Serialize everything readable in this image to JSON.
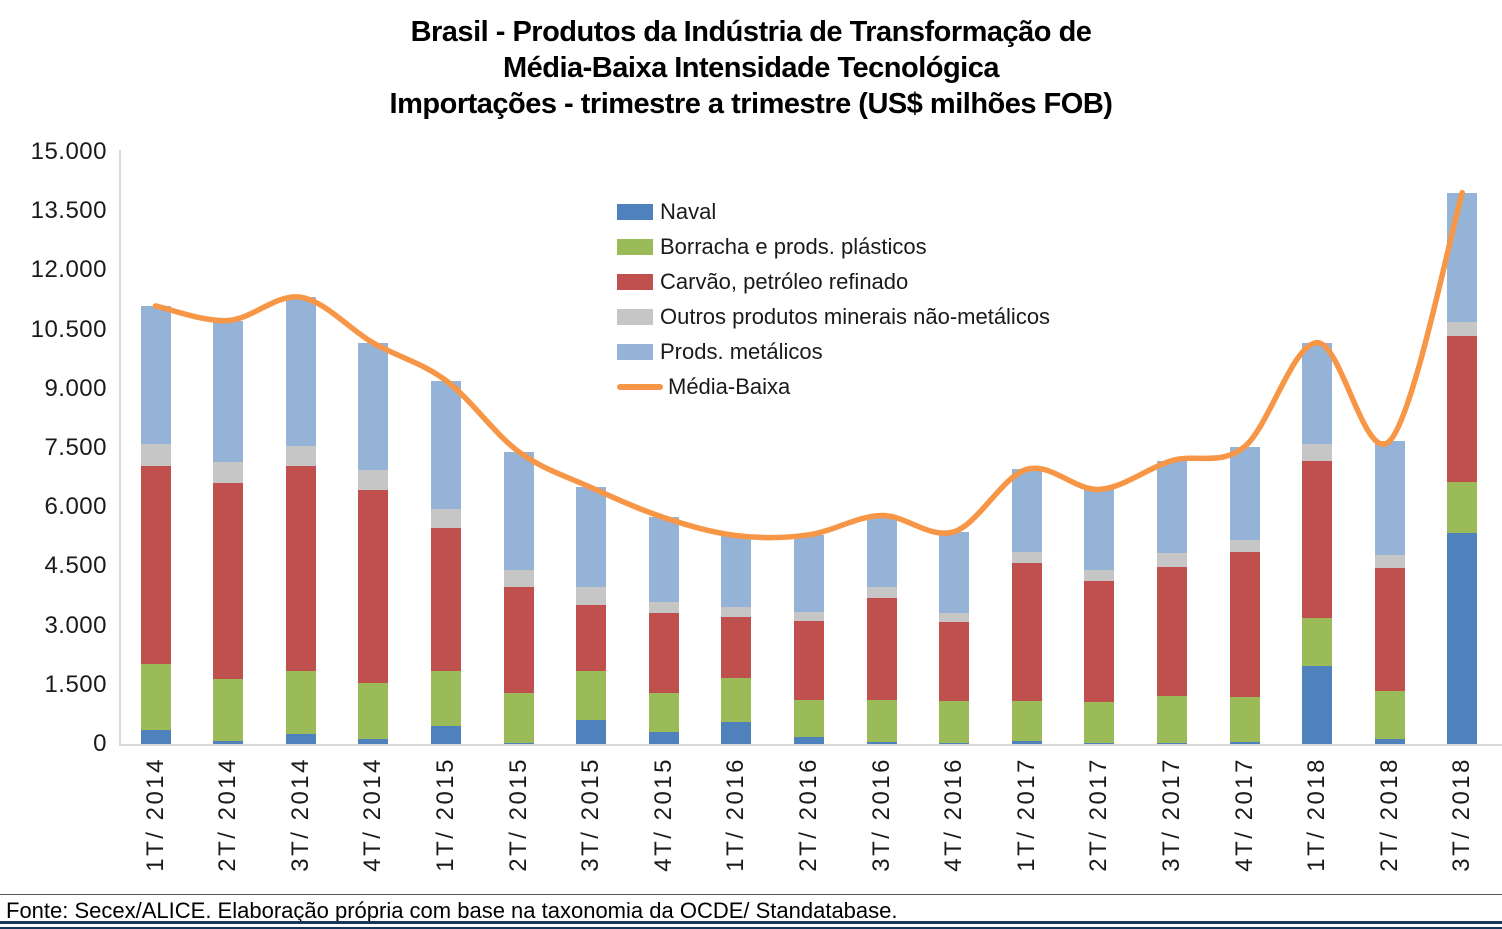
{
  "title": {
    "line1": "Brasil - Produtos da Indústria de Transformação de",
    "line2": "Média-Baixa Intensidade Tecnológica",
    "line3": "Importações - trimestre a trimestre (US$ milhões FOB)"
  },
  "footer": {
    "source": "Fonte: Secex/ALICE. Elaboração própria com base na taxonomia da OCDE/ Standatabase."
  },
  "legend": {
    "items": [
      {
        "key": "naval",
        "label": "Naval",
        "color": "#4F81BD",
        "type": "box"
      },
      {
        "key": "borracha",
        "label": "Borracha e prods. plásticos",
        "color": "#9BBB59",
        "type": "box"
      },
      {
        "key": "carvao",
        "label": "Carvão, petróleo refinado",
        "color": "#C0504D",
        "type": "box"
      },
      {
        "key": "outros",
        "label": "Outros produtos minerais não-metálicos",
        "color": "#C6C6C6",
        "type": "box"
      },
      {
        "key": "metalicos",
        "label": "Prods. metálicos",
        "color": "#95B3D7",
        "type": "box"
      },
      {
        "key": "media-baixa",
        "label": "Média-Baixa",
        "color": "#F79646",
        "type": "line"
      }
    ]
  },
  "chart_data": {
    "type": "bar",
    "subtype": "stacked-bars-with-smooth-line",
    "unit": "US$ milhões FOB",
    "grid": false,
    "legend_position": "inside-top-center",
    "categories": [
      "1T/ 2014",
      "2T/ 2014",
      "3T/ 2014",
      "4T/ 2014",
      "1T/ 2015",
      "2T/ 2015",
      "3T/ 2015",
      "4T/ 2015",
      "1T/ 2016",
      "2T/ 2016",
      "3T/ 2016",
      "4T/ 2016",
      "1T/ 2017",
      "2T/ 2017",
      "3T/ 2017",
      "4T/ 2017",
      "1T/ 2018",
      "2T/ 2018",
      "3T/ 2018"
    ],
    "series": [
      {
        "key": "naval",
        "name": "Naval",
        "color": "#4F81BD",
        "values": [
          360,
          80,
          250,
          120,
          460,
          30,
          610,
          300,
          550,
          170,
          50,
          30,
          80,
          20,
          20,
          40,
          1980,
          120,
          5340
        ]
      },
      {
        "key": "borracha",
        "name": "Borracha e prods. plásticos",
        "color": "#9BBB59",
        "values": [
          1670,
          1560,
          1600,
          1420,
          1400,
          1270,
          1250,
          1000,
          1130,
          950,
          1070,
          1060,
          1020,
          1040,
          1200,
          1160,
          1200,
          1220,
          1310
        ]
      },
      {
        "key": "carvao",
        "name": "Carvão, petróleo refinado",
        "color": "#C0504D",
        "values": [
          5020,
          4970,
          5200,
          4900,
          3610,
          2690,
          1660,
          2010,
          1550,
          2000,
          2570,
          1990,
          3490,
          3080,
          3270,
          3670,
          4000,
          3110,
          3690
        ]
      },
      {
        "key": "outros",
        "name": "Outros produtos minerais não-metálicos",
        "color": "#C6C6C6",
        "values": [
          540,
          530,
          500,
          500,
          480,
          420,
          450,
          280,
          250,
          230,
          300,
          230,
          280,
          270,
          340,
          300,
          410,
          340,
          340
        ]
      },
      {
        "key": "metalicos",
        "name": "Prods. metálicos",
        "color": "#95B3D7",
        "values": [
          3510,
          3590,
          3770,
          3220,
          3260,
          3000,
          2530,
          2150,
          1800,
          1950,
          1800,
          2070,
          2090,
          2040,
          2350,
          2360,
          2580,
          2890,
          3290
        ]
      }
    ],
    "line_series": {
      "key": "media-baixa",
      "name": "Média-Baixa",
      "color": "#F79646",
      "values": [
        11100,
        10730,
        11320,
        10160,
        9210,
        7410,
        6500,
        5740,
        5280,
        5300,
        5790,
        5380,
        6960,
        6450,
        7180,
        7530,
        10170,
        7680,
        13970
      ]
    },
    "y_axis": {
      "min": 0,
      "max": 15000,
      "step": 1500,
      "tick_labels": [
        "0",
        "1.500",
        "3.000",
        "4.500",
        "6.000",
        "7.500",
        "9.000",
        "10.500",
        "12.000",
        "13.500",
        "15.000"
      ]
    }
  }
}
